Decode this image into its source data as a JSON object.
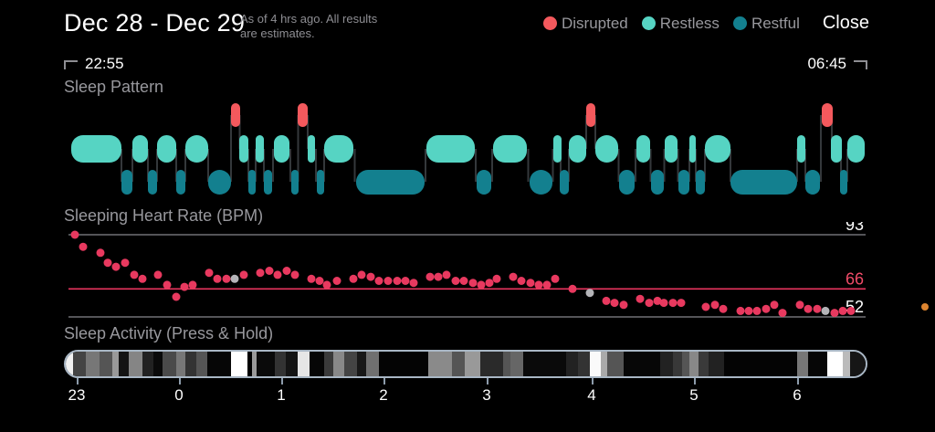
{
  "header": {
    "title": "Dec 28 - Dec 29",
    "subtitle_line1": "As of 4 hrs ago. All results",
    "subtitle_line2": "are estimates.",
    "close_label": "Close",
    "legend": [
      {
        "label": "Disrupted",
        "color": "#f4595d"
      },
      {
        "label": "Restless",
        "color": "#56d4c3"
      },
      {
        "label": "Restful",
        "color": "#13808f"
      }
    ]
  },
  "time_range": {
    "start": "22:55",
    "end": "06:45"
  },
  "sections": {
    "pattern_label": "Sleep Pattern",
    "heart_rate_label": "Sleeping Heart Rate (BPM)",
    "activity_label": "Sleep Activity (Press & Hold)"
  },
  "chart_data": [
    {
      "type": "hypnogram",
      "title": "Sleep Pattern",
      "x_scale": "pixels 0-880 spanning 22:55 to 06:45",
      "levels": [
        "disrupted",
        "restless",
        "restful"
      ],
      "colors": {
        "disrupted": "#f4595d",
        "restless": "#56d4c3",
        "restful": "#13808f"
      },
      "connector_color": "#34383b",
      "segments": [
        [
          8,
          63,
          "restless"
        ],
        [
          63,
          75,
          "restful"
        ],
        [
          75,
          92,
          "restless"
        ],
        [
          92,
          102,
          "restful"
        ],
        [
          102,
          123,
          "restless"
        ],
        [
          123,
          133,
          "restful"
        ],
        [
          133,
          158,
          "restless"
        ],
        [
          158,
          183,
          "restful"
        ],
        [
          183,
          193,
          "disrupted"
        ],
        [
          192,
          202,
          "restless"
        ],
        [
          202,
          210,
          "restful"
        ],
        [
          210,
          219,
          "restless"
        ],
        [
          219,
          228,
          "restful"
        ],
        [
          230,
          247,
          "restless"
        ],
        [
          249,
          257,
          "restful"
        ],
        [
          256,
          267,
          "disrupted"
        ],
        [
          267,
          275,
          "restless"
        ],
        [
          277,
          285,
          "restful"
        ],
        [
          285,
          317,
          "restless"
        ],
        [
          320,
          395,
          "restful"
        ],
        [
          397,
          450,
          "restless"
        ],
        [
          452,
          468,
          "restful"
        ],
        [
          470,
          507,
          "restless"
        ],
        [
          510,
          535,
          "restful"
        ],
        [
          536,
          545,
          "restless"
        ],
        [
          543,
          553,
          "restful"
        ],
        [
          553,
          572,
          "restless"
        ],
        [
          572,
          582,
          "disrupted"
        ],
        [
          582,
          607,
          "restless"
        ],
        [
          608,
          625,
          "restful"
        ],
        [
          627,
          642,
          "restless"
        ],
        [
          643,
          657,
          "restful"
        ],
        [
          658,
          672,
          "restless"
        ],
        [
          673,
          685,
          "restful"
        ],
        [
          685,
          692,
          "restless"
        ],
        [
          692,
          702,
          "restful"
        ],
        [
          702,
          730,
          "restless"
        ],
        [
          730,
          803,
          "restful"
        ],
        [
          803,
          812,
          "restless"
        ],
        [
          812,
          828,
          "restful"
        ],
        [
          830,
          842,
          "disrupted"
        ],
        [
          840,
          852,
          "restless"
        ],
        [
          850,
          858,
          "restful"
        ],
        [
          858,
          877,
          "restless"
        ]
      ]
    },
    {
      "type": "scatter",
      "title": "Sleeping Heart Rate (BPM)",
      "unit": "bpm",
      "dot_color": "#e8395f",
      "gray_dot_color": "#b4b4b8",
      "ylines": [
        {
          "value": 93,
          "line_color": "#87878c",
          "label": "93",
          "label_color": "#ffffff"
        },
        {
          "value": 66,
          "line_color": "#e8355e",
          "label": "66",
          "label_color": "#ef4b68"
        },
        {
          "value": 52,
          "line_color": "#87878c",
          "label": "52",
          "label_color": "#ffffff"
        }
      ],
      "ylim": [
        52,
        93
      ],
      "points": [
        [
          12,
          93
        ],
        [
          21,
          87
        ],
        [
          40,
          84
        ],
        [
          48,
          79
        ],
        [
          57,
          77
        ],
        [
          67,
          79
        ],
        [
          77,
          73
        ],
        [
          86,
          71
        ],
        [
          103,
          73
        ],
        [
          113,
          68
        ],
        [
          123,
          62
        ],
        [
          132,
          67
        ],
        [
          141,
          68
        ],
        [
          159,
          74
        ],
        [
          168,
          71
        ],
        [
          178,
          71
        ],
        [
          187,
          71,
          1
        ],
        [
          197,
          73
        ],
        [
          215,
          74
        ],
        [
          225,
          75
        ],
        [
          234,
          73
        ],
        [
          244,
          75
        ],
        [
          253,
          73
        ],
        [
          271,
          71
        ],
        [
          280,
          70
        ],
        [
          288,
          68
        ],
        [
          299,
          70
        ],
        [
          317,
          71
        ],
        [
          326,
          73
        ],
        [
          336,
          72
        ],
        [
          345,
          70
        ],
        [
          355,
          70
        ],
        [
          365,
          70
        ],
        [
          374,
          70
        ],
        [
          383,
          69
        ],
        [
          401,
          72
        ],
        [
          410,
          72
        ],
        [
          419,
          73
        ],
        [
          429,
          70
        ],
        [
          438,
          70
        ],
        [
          448,
          69
        ],
        [
          457,
          68
        ],
        [
          466,
          69
        ],
        [
          474,
          71
        ],
        [
          492,
          72
        ],
        [
          501,
          70
        ],
        [
          511,
          69
        ],
        [
          520,
          68
        ],
        [
          529,
          68
        ],
        [
          538,
          71
        ],
        [
          557,
          66
        ],
        [
          576,
          64,
          1
        ],
        [
          594,
          60
        ],
        [
          603,
          59
        ],
        [
          613,
          58
        ],
        [
          631,
          61
        ],
        [
          641,
          59
        ],
        [
          650,
          60
        ],
        [
          657,
          59
        ],
        [
          667,
          59
        ],
        [
          676,
          59
        ],
        [
          703,
          57
        ],
        [
          713,
          58
        ],
        [
          722,
          56
        ],
        [
          741,
          55
        ],
        [
          750,
          55
        ],
        [
          759,
          55
        ],
        [
          769,
          56
        ],
        [
          778,
          58
        ],
        [
          787,
          54
        ],
        [
          806,
          58
        ],
        [
          815,
          56
        ],
        [
          825,
          56
        ],
        [
          834,
          55,
          1
        ],
        [
          844,
          54
        ],
        [
          853,
          55
        ],
        [
          862,
          55
        ]
      ],
      "extra_marker": {
        "name": "orange-dot",
        "color": "#dd8530",
        "bpm": 57
      }
    },
    {
      "type": "heatmap-strip",
      "title": "Sleep Activity (Press & Hold)",
      "border_color": "#a9b7c5",
      "hours": [
        [
          "23",
          14
        ],
        [
          "0",
          126
        ],
        [
          "1",
          238
        ],
        [
          "2",
          350
        ],
        [
          "3",
          463
        ],
        [
          "4",
          578
        ],
        [
          "5",
          690
        ],
        [
          "6",
          803
        ]
      ],
      "bands": [
        [
          8,
          "#f0f0f0"
        ],
        [
          14,
          "#444444"
        ],
        [
          15,
          "#777777"
        ],
        [
          14,
          "#555555"
        ],
        [
          7,
          "#999999"
        ],
        [
          11,
          "#141414"
        ],
        [
          15,
          "#858585"
        ],
        [
          12,
          "#222222"
        ],
        [
          10,
          "#0a0a0a"
        ],
        [
          15,
          "#4a4a4a"
        ],
        [
          10,
          "#777777"
        ],
        [
          12,
          "#333333"
        ],
        [
          12,
          "#555555"
        ],
        [
          26,
          "#060606"
        ],
        [
          18,
          "#ffffff"
        ],
        [
          5,
          "#000000"
        ],
        [
          5,
          "#999999"
        ],
        [
          20,
          "#0a0a0a"
        ],
        [
          12,
          "#333333"
        ],
        [
          13,
          "#141414"
        ],
        [
          13,
          "#e6e6e6"
        ],
        [
          16,
          "#060606"
        ],
        [
          10,
          "#3a3a3a"
        ],
        [
          12,
          "#888888"
        ],
        [
          14,
          "#444444"
        ],
        [
          10,
          "#181818"
        ],
        [
          14,
          "#707070"
        ],
        [
          54,
          "#040404"
        ],
        [
          26,
          "#8a8a8a"
        ],
        [
          14,
          "#555555"
        ],
        [
          17,
          "#999999"
        ],
        [
          25,
          "#2a2a2a"
        ],
        [
          8,
          "#555555"
        ],
        [
          14,
          "#666666"
        ],
        [
          47,
          "#0a0a0a"
        ],
        [
          13,
          "#222222"
        ],
        [
          13,
          "#333333"
        ],
        [
          12,
          "#fafafa"
        ],
        [
          7,
          "#aaaaaa"
        ],
        [
          18,
          "#555555"
        ],
        [
          40,
          "#070707"
        ],
        [
          14,
          "#222222"
        ],
        [
          10,
          "#383838"
        ],
        [
          8,
          "#555555"
        ],
        [
          10,
          "#888888"
        ],
        [
          11,
          "#3a3a3a"
        ],
        [
          17,
          "#222222"
        ],
        [
          80,
          "#040404"
        ],
        [
          12,
          "#777777"
        ],
        [
          21,
          "#060606"
        ],
        [
          17,
          "#ffffff"
        ],
        [
          8,
          "#bbbbbb"
        ],
        [
          21,
          "#161616"
        ]
      ]
    }
  ]
}
